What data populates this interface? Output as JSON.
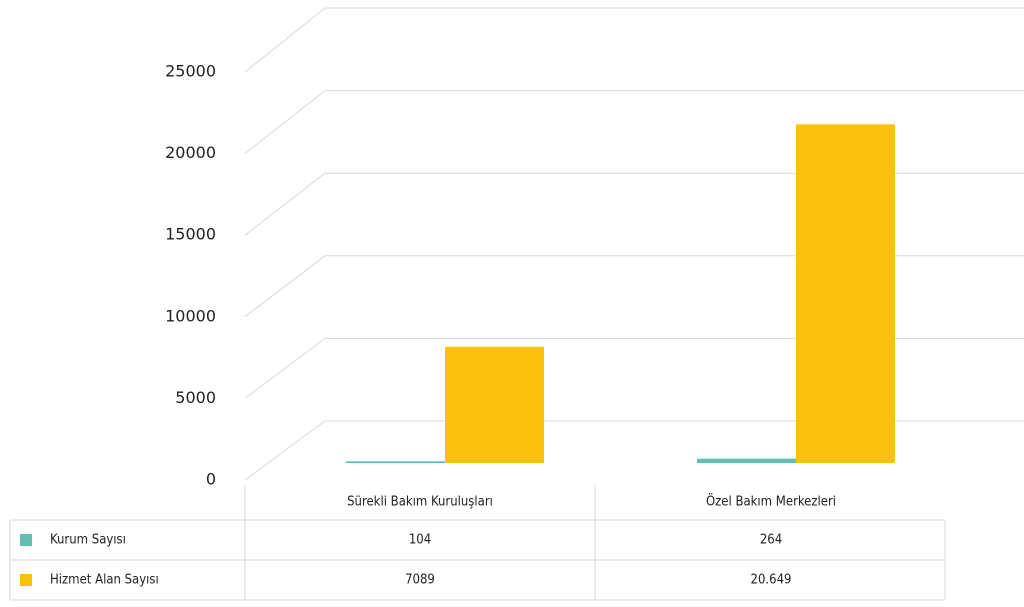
{
  "chart_data": {
    "type": "bar",
    "categories": [
      "Sürekli Bakım Kuruluşları",
      "Özel Bakım Merkezleri"
    ],
    "series": [
      {
        "name": "Kurum Sayısı",
        "color": "#62bfb1",
        "values": [
          104,
          264
        ]
      },
      {
        "name": "Hizmet Alan Sayısı",
        "color": "#fbc10e",
        "values": [
          7089,
          20649
        ],
        "value_labels": [
          "7089",
          "20.649"
        ]
      }
    ],
    "ylim": [
      0,
      25000
    ],
    "yticks": [
      0,
      5000,
      10000,
      15000,
      20000,
      25000
    ],
    "grid": true
  }
}
